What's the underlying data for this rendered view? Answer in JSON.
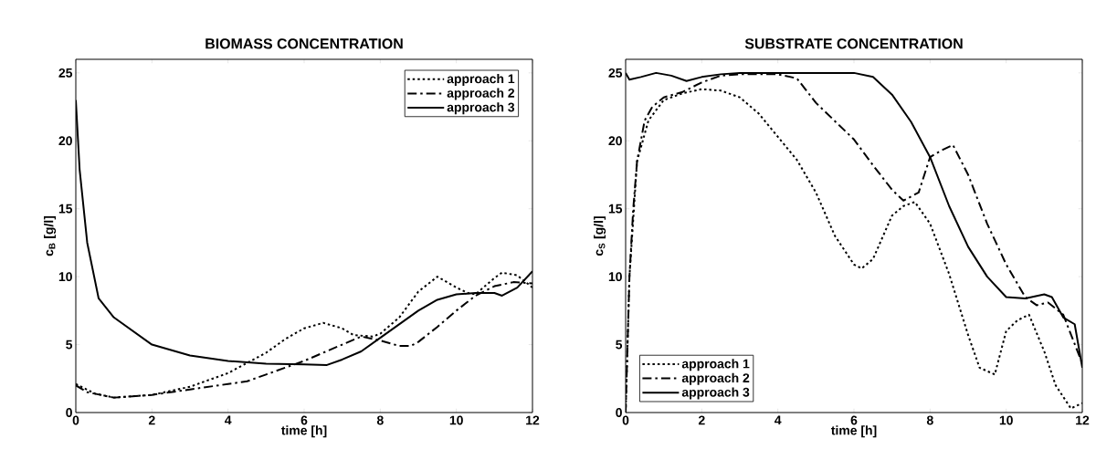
{
  "chart_data": [
    {
      "type": "line",
      "title": "BIOMASS CONCENTRATION",
      "xlabel": "time [h]",
      "ylabel": "c$_{B}$ [g/l]",
      "xlim": [
        0,
        12
      ],
      "ylim": [
        0,
        26
      ],
      "xticks": [
        0,
        2,
        4,
        6,
        8,
        10,
        12
      ],
      "yticks": [
        0,
        5,
        10,
        15,
        20,
        25
      ],
      "legend": "top right",
      "grid": false,
      "series": [
        {
          "name": "approach 1",
          "color": "#000000",
          "line_style": "dotted",
          "x": [
            0,
            0.5,
            1,
            2,
            3,
            4,
            5,
            5.5,
            6,
            6.5,
            7,
            7.3,
            7.8,
            8,
            8.5,
            9,
            9.5,
            10,
            10.3,
            10.5,
            11,
            11.2,
            11.6,
            12
          ],
          "values": [
            2.1,
            1.4,
            1.1,
            1.3,
            1.9,
            2.9,
            4.4,
            5.4,
            6.2,
            6.6,
            6.2,
            5.7,
            5.6,
            5.8,
            7.0,
            8.9,
            10.0,
            9.2,
            8.8,
            8.7,
            9.9,
            10.3,
            10.1,
            9.2
          ]
        },
        {
          "name": "approach 2",
          "color": "#000000",
          "line_style": "dashdot",
          "x": [
            0,
            0.3,
            1,
            2,
            3,
            4,
            4.5,
            5,
            6,
            7,
            7.5,
            8,
            8.5,
            8.8,
            9,
            9.5,
            10,
            10.5,
            11,
            11.5,
            12
          ],
          "values": [
            2.0,
            1.5,
            1.1,
            1.3,
            1.7,
            2.1,
            2.3,
            2.8,
            3.8,
            5.0,
            5.6,
            5.3,
            4.9,
            4.9,
            5.2,
            6.3,
            7.5,
            8.6,
            9.3,
            9.6,
            9.5
          ]
        },
        {
          "name": "approach 3",
          "color": "#000000",
          "line_style": "solid",
          "x": [
            0,
            0.1,
            0.3,
            0.6,
            1,
            2,
            3,
            4,
            5,
            6,
            6.6,
            7,
            7.5,
            8,
            9,
            9.5,
            10,
            10.5,
            11,
            11.2,
            11.6,
            12
          ],
          "values": [
            23.0,
            17.9,
            12.5,
            8.4,
            7.0,
            5.0,
            4.2,
            3.8,
            3.6,
            3.55,
            3.5,
            3.9,
            4.5,
            5.5,
            7.5,
            8.3,
            8.7,
            8.8,
            8.8,
            8.6,
            9.2,
            10.4
          ]
        }
      ]
    },
    {
      "type": "line",
      "title": "SUBSTRATE CONCENTRATION",
      "xlabel": "time [h]",
      "ylabel": "c$_{S}$ [g/l]",
      "xlim": [
        0,
        12
      ],
      "ylim": [
        0,
        26
      ],
      "xticks": [
        0,
        2,
        4,
        6,
        8,
        10,
        12
      ],
      "yticks": [
        0,
        5,
        10,
        15,
        20,
        25
      ],
      "legend": "bottom left",
      "grid": false,
      "series": [
        {
          "name": "approach 1",
          "color": "#000000",
          "line_style": "dotted",
          "x": [
            0,
            0.1,
            0.3,
            0.6,
            1,
            1.5,
            2,
            2.5,
            3,
            3.5,
            4,
            4.5,
            5,
            5.5,
            6,
            6.2,
            6.5,
            7,
            7.3,
            7.6,
            8,
            8.5,
            9,
            9.3,
            9.7,
            10,
            10.3,
            10.6,
            11,
            11.3,
            11.7,
            12
          ],
          "values": [
            0,
            10,
            18.5,
            21.5,
            23.0,
            23.5,
            23.8,
            23.7,
            23.2,
            22.0,
            20.3,
            18.6,
            16.2,
            13.0,
            10.9,
            10.6,
            11.3,
            14.5,
            15.2,
            15.5,
            13.9,
            10.2,
            5.7,
            3.3,
            2.8,
            6.0,
            6.8,
            7.2,
            4.5,
            2.0,
            0.3,
            0.7
          ]
        },
        {
          "name": "approach 2",
          "color": "#000000",
          "line_style": "dashdot",
          "x": [
            0,
            0.05,
            0.1,
            0.2,
            0.3,
            0.5,
            0.7,
            1,
            1.5,
            2,
            2.5,
            3,
            4,
            4.5,
            5,
            6,
            6.5,
            7,
            7.3,
            7.7,
            8,
            8.3,
            8.6,
            9,
            9.5,
            10,
            10.5,
            10.8,
            11.1,
            11.5,
            12
          ],
          "values": [
            0,
            5,
            10,
            15,
            18.5,
            21.5,
            22.5,
            23.2,
            23.6,
            24.3,
            24.8,
            24.9,
            24.9,
            24.6,
            22.8,
            20.1,
            18.2,
            16.4,
            15.6,
            16.2,
            18.8,
            19.3,
            19.7,
            17.5,
            13.9,
            10.9,
            8.5,
            7.9,
            8.1,
            7.2,
            3.6
          ]
        },
        {
          "name": "approach 3",
          "color": "#000000",
          "line_style": "solid",
          "x": [
            0,
            0.1,
            0.4,
            0.8,
            1.2,
            1.6,
            2,
            2.5,
            3,
            4,
            5,
            6,
            6.5,
            7,
            7.5,
            8,
            8.5,
            9,
            9.5,
            10,
            10.5,
            11,
            11.2,
            11.5,
            11.8,
            12
          ],
          "values": [
            25.0,
            24.5,
            24.7,
            25.0,
            24.8,
            24.4,
            24.7,
            24.9,
            25,
            25,
            25,
            25,
            24.7,
            23.4,
            21.4,
            18.8,
            15.2,
            12.2,
            10.0,
            8.5,
            8.4,
            8.7,
            8.5,
            7.0,
            6.5,
            3.3
          ]
        }
      ]
    }
  ]
}
